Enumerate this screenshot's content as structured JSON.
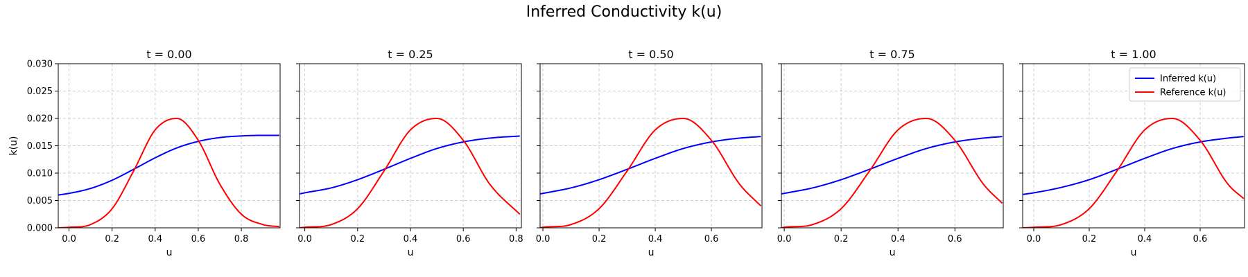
{
  "figure": {
    "title": "Inferred Conductivity k(u)"
  },
  "colors": {
    "inferred": "#0000ff",
    "reference": "#ff0000",
    "grid": "#cccccc",
    "legend_border": "#cccccc"
  },
  "chart_data": [
    {
      "type": "line",
      "title": "t = 0.00",
      "xlabel": "u",
      "ylabel": "k(u)",
      "xlim": [
        -0.05,
        0.98
      ],
      "ylim": [
        0,
        0.03
      ],
      "xticks": [
        0.0,
        0.2,
        0.4,
        0.6,
        0.8
      ],
      "xtick_labels": [
        "0.0",
        "0.2",
        "0.4",
        "0.6",
        "0.8"
      ],
      "yticks": [
        0,
        0.005,
        0.01,
        0.015,
        0.02,
        0.025,
        0.03
      ],
      "ytick_labels": [
        "0.000",
        "0.005",
        "0.010",
        "0.015",
        "0.020",
        "0.025",
        "0.030"
      ],
      "grid": true,
      "legend": null,
      "series": [
        {
          "name": "Inferred k(u)",
          "color": "#0000ff",
          "x": [
            -0.05,
            0.0,
            0.1,
            0.2,
            0.3,
            0.4,
            0.5,
            0.6,
            0.7,
            0.8,
            0.9,
            0.98
          ],
          "y": [
            0.006,
            0.0063,
            0.0072,
            0.0087,
            0.0107,
            0.0128,
            0.0146,
            0.0158,
            0.0165,
            0.0168,
            0.0169,
            0.0169
          ]
        },
        {
          "name": "Reference k(u)",
          "color": "#ff0000",
          "x": [
            -0.05,
            0.0,
            0.1,
            0.2,
            0.3,
            0.4,
            0.5,
            0.6,
            0.7,
            0.8,
            0.9,
            0.98
          ],
          "y": [
            0.0,
            0.0001,
            0.0006,
            0.0035,
            0.0104,
            0.0179,
            0.02,
            0.016,
            0.008,
            0.0025,
            0.0006,
            0.0002
          ]
        }
      ]
    },
    {
      "type": "line",
      "title": "t = 0.25",
      "xlabel": "u",
      "ylabel": "",
      "xlim": [
        -0.02,
        0.82
      ],
      "ylim": [
        0,
        0.03
      ],
      "xticks": [
        0.0,
        0.2,
        0.4,
        0.6,
        0.8
      ],
      "xtick_labels": [
        "0.0",
        "0.2",
        "0.4",
        "0.6",
        "0.8"
      ],
      "yticks": [
        0,
        0.005,
        0.01,
        0.015,
        0.02,
        0.025,
        0.03
      ],
      "ytick_labels": [],
      "grid": true,
      "legend": null,
      "series": [
        {
          "name": "Inferred k(u)",
          "color": "#0000ff",
          "x": [
            -0.02,
            0.0,
            0.1,
            0.2,
            0.3,
            0.4,
            0.5,
            0.6,
            0.7,
            0.82
          ],
          "y": [
            0.0062,
            0.0064,
            0.0073,
            0.0088,
            0.0107,
            0.0127,
            0.0145,
            0.0157,
            0.0164,
            0.0168
          ]
        },
        {
          "name": "Reference k(u)",
          "color": "#ff0000",
          "x": [
            -0.02,
            0.0,
            0.1,
            0.2,
            0.3,
            0.4,
            0.5,
            0.6,
            0.7,
            0.82
          ],
          "y": [
            0.0,
            0.0001,
            0.0006,
            0.0035,
            0.0104,
            0.0179,
            0.02,
            0.016,
            0.008,
            0.0022
          ]
        }
      ]
    },
    {
      "type": "line",
      "title": "t = 0.50",
      "xlabel": "u",
      "ylabel": "",
      "xlim": [
        -0.01,
        0.78
      ],
      "ylim": [
        0,
        0.03
      ],
      "xticks": [
        0.0,
        0.2,
        0.4,
        0.6
      ],
      "xtick_labels": [
        "0.0",
        "0.2",
        "0.4",
        "0.6"
      ],
      "yticks": [
        0,
        0.005,
        0.01,
        0.015,
        0.02,
        0.025,
        0.03
      ],
      "ytick_labels": [],
      "grid": true,
      "legend": null,
      "series": [
        {
          "name": "Inferred k(u)",
          "color": "#0000ff",
          "x": [
            -0.01,
            0.0,
            0.1,
            0.2,
            0.3,
            0.4,
            0.5,
            0.6,
            0.7,
            0.78
          ],
          "y": [
            0.0062,
            0.0063,
            0.0073,
            0.0088,
            0.0107,
            0.0127,
            0.0145,
            0.0157,
            0.0164,
            0.0167
          ]
        },
        {
          "name": "Reference k(u)",
          "color": "#ff0000",
          "x": [
            -0.01,
            0.0,
            0.1,
            0.2,
            0.3,
            0.4,
            0.5,
            0.6,
            0.7,
            0.78
          ],
          "y": [
            0.0,
            0.0001,
            0.0006,
            0.0035,
            0.0104,
            0.0179,
            0.02,
            0.016,
            0.008,
            0.0038
          ]
        }
      ]
    },
    {
      "type": "line",
      "title": "t = 0.75",
      "xlabel": "u",
      "ylabel": "",
      "xlim": [
        -0.01,
        0.77
      ],
      "ylim": [
        0,
        0.03
      ],
      "xticks": [
        0.0,
        0.2,
        0.4,
        0.6
      ],
      "xtick_labels": [
        "0.0",
        "0.2",
        "0.4",
        "0.6"
      ],
      "yticks": [
        0,
        0.005,
        0.01,
        0.015,
        0.02,
        0.025,
        0.03
      ],
      "ytick_labels": [],
      "grid": true,
      "legend": null,
      "series": [
        {
          "name": "Inferred k(u)",
          "color": "#0000ff",
          "x": [
            -0.01,
            0.0,
            0.1,
            0.2,
            0.3,
            0.4,
            0.5,
            0.6,
            0.7,
            0.77
          ],
          "y": [
            0.0062,
            0.0063,
            0.0073,
            0.0088,
            0.0107,
            0.0127,
            0.0145,
            0.0157,
            0.0164,
            0.0167
          ]
        },
        {
          "name": "Reference k(u)",
          "color": "#ff0000",
          "x": [
            -0.01,
            0.0,
            0.1,
            0.2,
            0.3,
            0.4,
            0.5,
            0.6,
            0.7,
            0.77
          ],
          "y": [
            0.0,
            0.0001,
            0.0006,
            0.0035,
            0.0104,
            0.0179,
            0.02,
            0.016,
            0.008,
            0.0043
          ]
        }
      ]
    },
    {
      "type": "line",
      "title": "t = 1.00",
      "xlabel": "u",
      "ylabel": "",
      "xlim": [
        -0.04,
        0.76
      ],
      "ylim": [
        0,
        0.03
      ],
      "xticks": [
        0.0,
        0.2,
        0.4,
        0.6
      ],
      "xtick_labels": [
        "0.0",
        "0.2",
        "0.4",
        "0.6"
      ],
      "yticks": [
        0,
        0.005,
        0.01,
        0.015,
        0.02,
        0.025,
        0.03
      ],
      "ytick_labels": [],
      "grid": true,
      "legend": "upper right",
      "series": [
        {
          "name": "Inferred k(u)",
          "color": "#0000ff",
          "x": [
            -0.04,
            0.0,
            0.1,
            0.2,
            0.3,
            0.4,
            0.5,
            0.6,
            0.7,
            0.76
          ],
          "y": [
            0.0061,
            0.0064,
            0.0074,
            0.0088,
            0.0107,
            0.0127,
            0.0145,
            0.0157,
            0.0164,
            0.0167
          ]
        },
        {
          "name": "Reference k(u)",
          "color": "#ff0000",
          "x": [
            -0.04,
            0.0,
            0.1,
            0.2,
            0.3,
            0.4,
            0.5,
            0.6,
            0.7,
            0.76
          ],
          "y": [
            0.0,
            0.0001,
            0.0006,
            0.0035,
            0.0104,
            0.0179,
            0.02,
            0.016,
            0.008,
            0.0052
          ]
        }
      ]
    }
  ]
}
